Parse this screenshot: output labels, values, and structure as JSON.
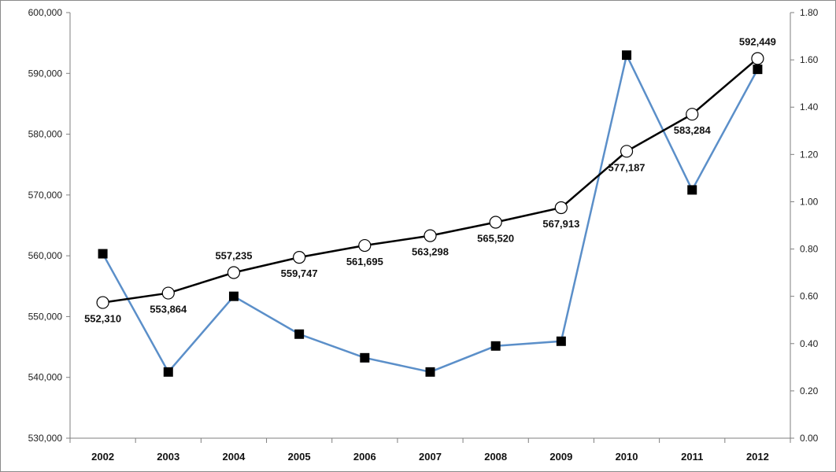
{
  "chart_data": {
    "type": "line",
    "categories": [
      "2002",
      "2003",
      "2004",
      "2005",
      "2006",
      "2007",
      "2008",
      "2009",
      "2010",
      "2011",
      "2012"
    ],
    "y_left": {
      "min": 530000,
      "max": 600000,
      "step": 10000,
      "tick_labels": [
        "530,000",
        "540,000",
        "550,000",
        "560,000",
        "570,000",
        "580,000",
        "590,000",
        "600,000"
      ]
    },
    "y_right": {
      "min": 0,
      "max": 1.8,
      "step": 0.2,
      "tick_labels": [
        "0.00",
        "0.20",
        "0.40",
        "0.60",
        "0.80",
        "1.00",
        "1.20",
        "1.40",
        "1.60",
        "1.80"
      ]
    },
    "series": [
      {
        "axis": "left",
        "color": "#000000",
        "marker": "circle-open",
        "values": [
          552310,
          553864,
          557235,
          559747,
          561695,
          563298,
          565520,
          567913,
          577187,
          583284,
          592449
        ],
        "labels": [
          "552,310",
          "553,864",
          "557,235",
          "559,747",
          "561,695",
          "563,298",
          "565,520",
          "567,913",
          "577,187",
          "583,284",
          "592,449"
        ],
        "label_positions": [
          "below",
          "below",
          "above",
          "below",
          "below",
          "below",
          "below",
          "below",
          "below",
          "below",
          "above"
        ]
      },
      {
        "axis": "right",
        "color": "#5B8FC9",
        "marker": "square-filled",
        "values": [
          0.78,
          0.28,
          0.6,
          0.44,
          0.34,
          0.28,
          0.39,
          0.41,
          1.62,
          1.05,
          1.56
        ]
      }
    ],
    "legend": "none",
    "grid": false
  }
}
